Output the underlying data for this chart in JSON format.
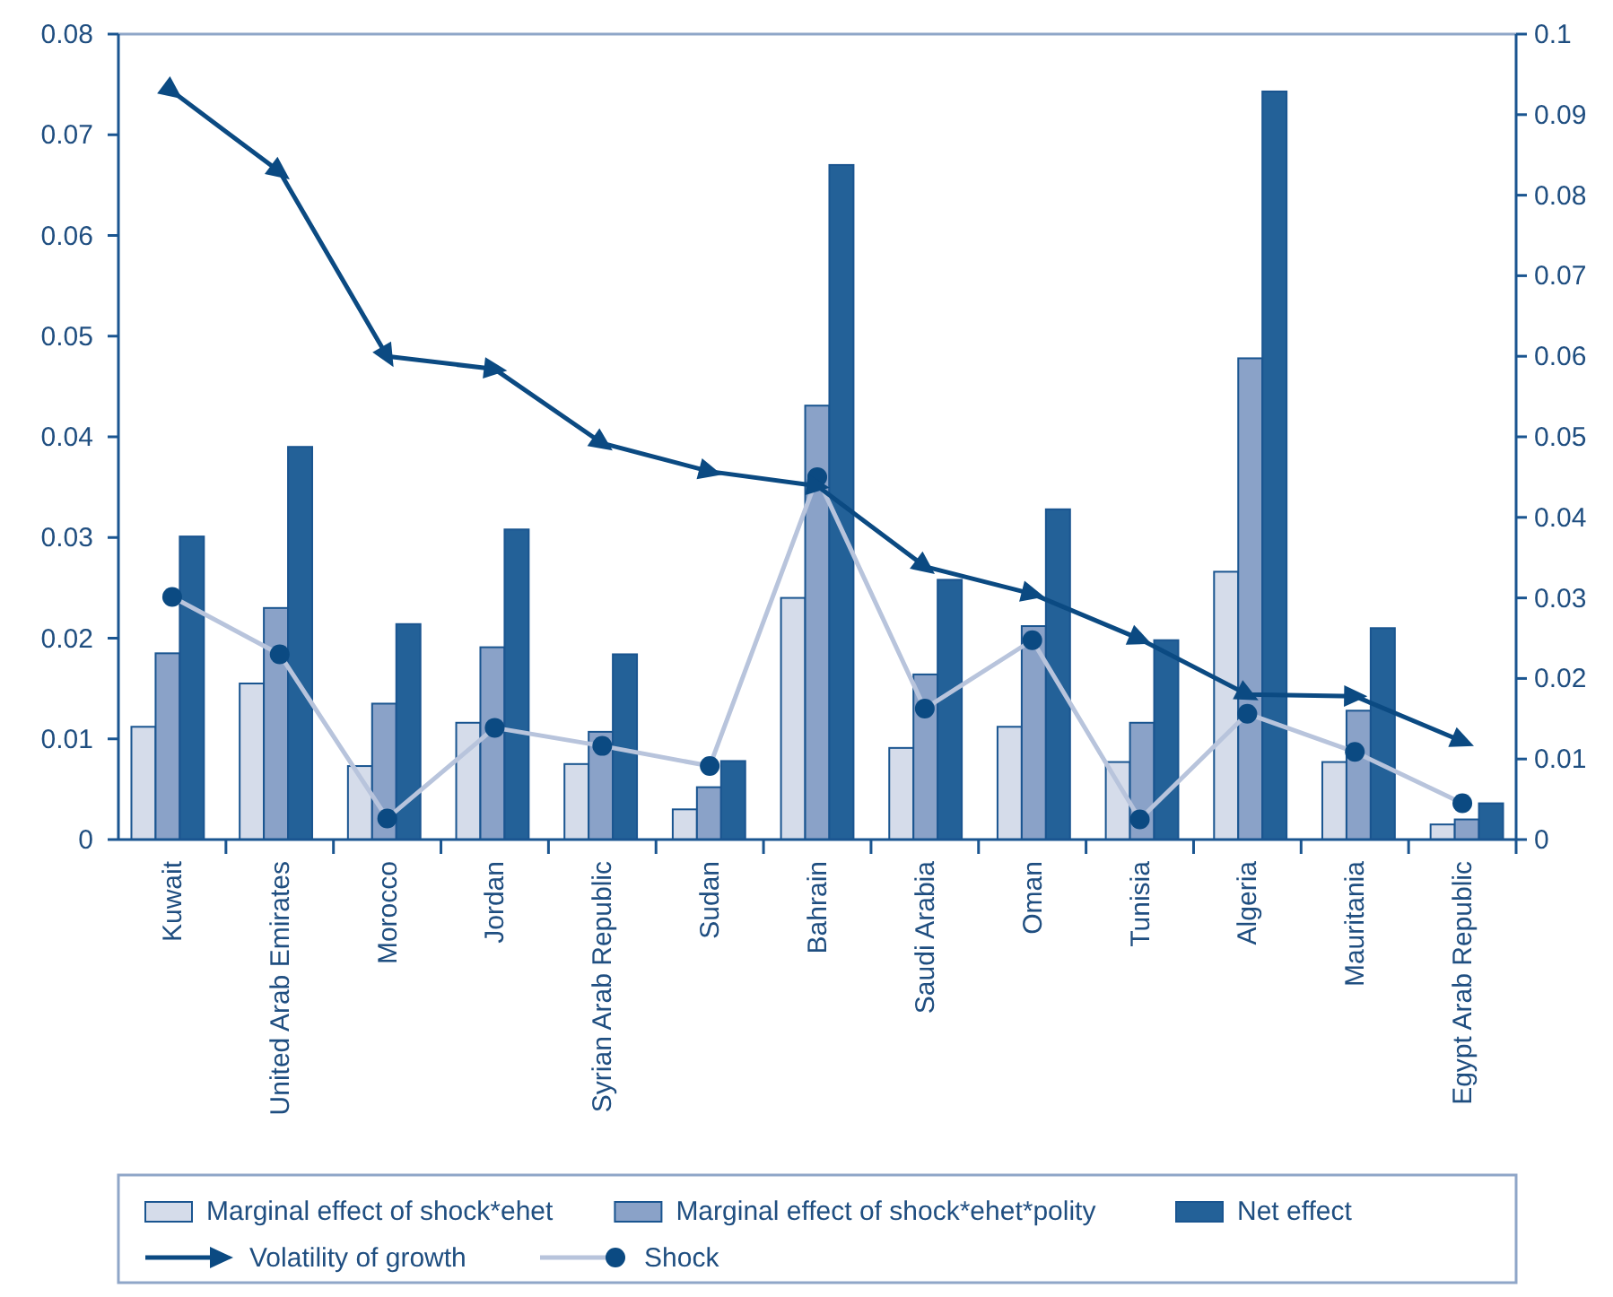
{
  "chart_data": {
    "type": "bar",
    "categories": [
      "Kuwait",
      "United Arab Emirates",
      "Morocco",
      "Jordan",
      "Syrian Arab Republic",
      "Sudan",
      "Bahrain",
      "Saudi Arabia",
      "Oman",
      "Tunisia",
      "Algeria",
      "Mauritania",
      "Egypt Arab Republic"
    ],
    "series": [
      {
        "name": "Marginal effect of shock*ehet",
        "color": "#d5dcea",
        "values": [
          0.0112,
          0.0155,
          0.0073,
          0.0116,
          0.0075,
          0.003,
          0.024,
          0.0091,
          0.0112,
          0.0077,
          0.0266,
          0.0077,
          0.0015
        ]
      },
      {
        "name": "Marginal effect of shock*ehet*polity",
        "color": "#8aa2c8",
        "values": [
          0.0185,
          0.023,
          0.0135,
          0.0191,
          0.0107,
          0.0052,
          0.0431,
          0.0164,
          0.0212,
          0.0116,
          0.0478,
          0.0128,
          0.002
        ]
      },
      {
        "name": "Net effect",
        "color": "#236198",
        "values": [
          0.0301,
          0.039,
          0.0214,
          0.0308,
          0.0184,
          0.0078,
          0.067,
          0.0258,
          0.0328,
          0.0198,
          0.0743,
          0.021,
          0.0036
        ]
      },
      {
        "name": "Volatility of growth",
        "type": "line",
        "axis": "y2",
        "marker": "triangle",
        "color": "#0b4a82",
        "values": [
          0.0929,
          0.0829,
          0.06,
          0.0584,
          0.0492,
          0.0457,
          0.0439,
          0.0339,
          0.0305,
          0.0249,
          0.018,
          0.0178,
          0.0122
        ]
      },
      {
        "name": "Shock",
        "type": "line",
        "marker": "circle",
        "color": "#b8c4dc",
        "colors": [
          "#0b4a82",
          "#0b4a82",
          "#0b4a82",
          "#0b4a82",
          "#0b4a82",
          "#0b4a82",
          "#0b4a82",
          "#0b4a82",
          "#0b4a82",
          "#0b4a82",
          "#0b4a82",
          "#0b4a82",
          "#0b4a82"
        ],
        "values": [
          0.0241,
          0.0184,
          0.0021,
          0.0111,
          0.0093,
          0.0073,
          0.036,
          0.013,
          0.0198,
          0.002,
          0.0125,
          0.0087,
          0.0036
        ]
      }
    ],
    "ylim": [
      0,
      0.08
    ],
    "yticks": [
      0,
      0.01,
      0.02,
      0.03,
      0.04,
      0.05,
      0.06,
      0.07,
      0.08
    ],
    "y2lim": [
      0,
      0.1
    ],
    "y2ticks": [
      0,
      0.01,
      0.02,
      0.03,
      0.04,
      0.05,
      0.06,
      0.07,
      0.08,
      0.09,
      0.1
    ],
    "legend": "bottom"
  }
}
